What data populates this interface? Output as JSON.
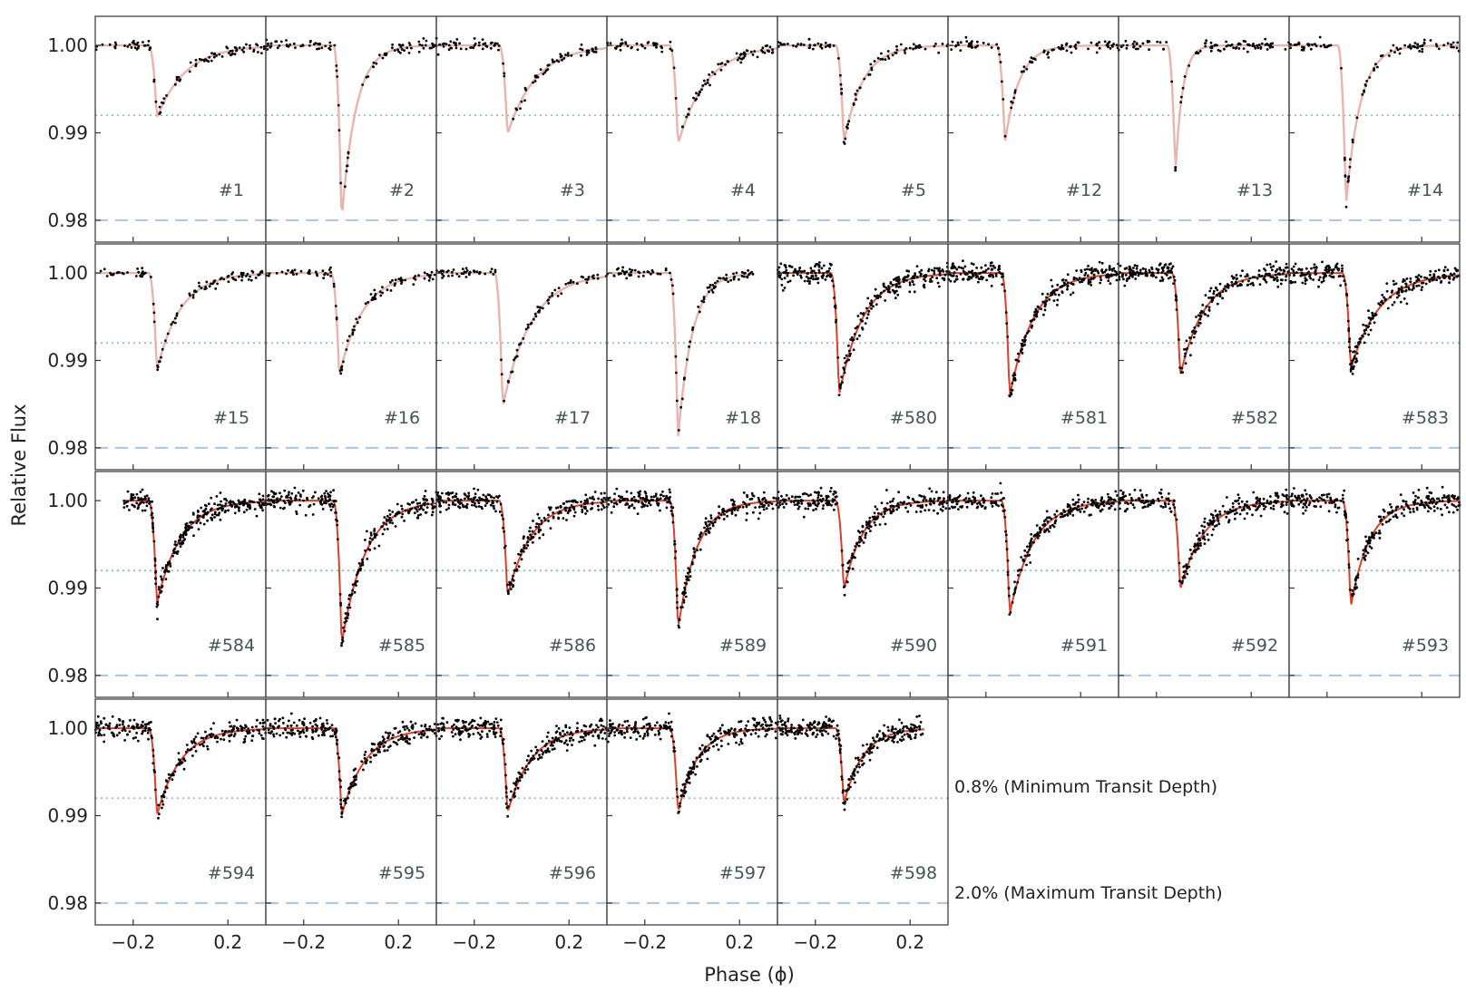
{
  "chart_data": {
    "type": "scatter",
    "title": "",
    "xlabel": "Phase (ϕ)",
    "ylabel": "Relative Flux",
    "xlim": [
      -0.36,
      0.36
    ],
    "ylim": [
      0.9775,
      1.0025
    ],
    "xticks": [
      -0.2,
      0.2
    ],
    "xtick_labels": [
      "−0.2",
      "0.2"
    ],
    "yticks": [
      1.0,
      0.99,
      0.98
    ],
    "ytick_labels": [
      "1.00",
      "0.99",
      "0.98"
    ],
    "reference_lines": [
      {
        "value": 0.992,
        "style": "dotted",
        "color": "#8fbcbf",
        "label": "0.8% (Minimum Transit Depth)"
      },
      {
        "value": 0.98,
        "style": "dashed",
        "color": "#a9c3e6",
        "label": "2.0% (Maximum Transit Depth)"
      }
    ],
    "model_color_faint": "#e8b4ae",
    "model_color_full": "#d9412b",
    "point_color": "#000000",
    "panels": [
      {
        "label": "#1",
        "depth": 0.0083,
        "center": -0.1,
        "egress_scale": 0.12,
        "model": "faint",
        "points": 100,
        "noise": 0.0003,
        "x_range": [
          -0.36,
          0.36
        ]
      },
      {
        "label": "#2",
        "depth": 0.02,
        "center": -0.04,
        "egress_scale": 0.06,
        "model": "faint",
        "points": 100,
        "noise": 0.0003,
        "x_range": [
          -0.36,
          0.36
        ]
      },
      {
        "label": "#3",
        "depth": 0.0102,
        "center": -0.06,
        "egress_scale": 0.12,
        "model": "faint",
        "points": 100,
        "noise": 0.0003,
        "x_range": [
          -0.36,
          0.36
        ]
      },
      {
        "label": "#4",
        "depth": 0.0113,
        "center": -0.06,
        "egress_scale": 0.12,
        "model": "faint",
        "points": 100,
        "noise": 0.0003,
        "x_range": [
          -0.36,
          0.36
        ]
      },
      {
        "label": "#5",
        "depth": 0.0112,
        "center": -0.08,
        "egress_scale": 0.08,
        "model": "faint",
        "points": 100,
        "noise": 0.0003,
        "x_range": [
          -0.36,
          0.36
        ]
      },
      {
        "label": "#12",
        "depth": 0.0112,
        "center": -0.12,
        "egress_scale": 0.06,
        "model": "faint",
        "points": 100,
        "noise": 0.0003,
        "x_range": [
          -0.36,
          0.36
        ]
      },
      {
        "label": "#13",
        "depth": 0.0145,
        "center": -0.12,
        "egress_scale": 0.03,
        "model": "faint",
        "points": 100,
        "noise": 0.0003,
        "x_range": [
          -0.36,
          0.36
        ]
      },
      {
        "label": "#14",
        "depth": 0.0183,
        "center": -0.12,
        "egress_scale": 0.06,
        "model": "faint",
        "points": 100,
        "noise": 0.0003,
        "x_range": [
          -0.36,
          0.36
        ]
      },
      {
        "label": "#15",
        "depth": 0.0112,
        "center": -0.1,
        "egress_scale": 0.1,
        "model": "faint",
        "points": 100,
        "noise": 0.0003,
        "x_range": [
          -0.36,
          0.36
        ]
      },
      {
        "label": "#16",
        "depth": 0.0118,
        "center": -0.05,
        "egress_scale": 0.1,
        "model": "faint",
        "points": 100,
        "noise": 0.0003,
        "x_range": [
          -0.36,
          0.36
        ]
      },
      {
        "label": "#17",
        "depth": 0.0153,
        "center": -0.08,
        "egress_scale": 0.12,
        "model": "faint",
        "points": 100,
        "noise": 0.0003,
        "x_range": [
          -0.36,
          0.36
        ]
      },
      {
        "label": "#18",
        "depth": 0.019,
        "center": -0.06,
        "egress_scale": 0.06,
        "model": "faint",
        "points": 100,
        "noise": 0.0003,
        "x_range": [
          -0.36,
          0.26
        ]
      },
      {
        "label": "#580",
        "depth": 0.014,
        "center": -0.1,
        "egress_scale": 0.1,
        "model": "full",
        "points": 280,
        "noise": 0.0006,
        "x_range": [
          -0.36,
          0.36
        ]
      },
      {
        "label": "#581",
        "depth": 0.0142,
        "center": -0.1,
        "egress_scale": 0.1,
        "model": "full",
        "points": 280,
        "noise": 0.0006,
        "x_range": [
          -0.36,
          0.36
        ]
      },
      {
        "label": "#582",
        "depth": 0.0118,
        "center": -0.1,
        "egress_scale": 0.1,
        "model": "full",
        "points": 280,
        "noise": 0.0006,
        "x_range": [
          -0.36,
          0.36
        ]
      },
      {
        "label": "#583",
        "depth": 0.011,
        "center": -0.1,
        "egress_scale": 0.12,
        "model": "full",
        "points": 280,
        "noise": 0.0006,
        "x_range": [
          -0.36,
          0.36
        ]
      },
      {
        "label": "#584",
        "depth": 0.0118,
        "center": -0.1,
        "egress_scale": 0.1,
        "model": "full",
        "points": 280,
        "noise": 0.0006,
        "x_range": [
          -0.24,
          0.36
        ]
      },
      {
        "label": "#585",
        "depth": 0.0164,
        "center": -0.04,
        "egress_scale": 0.1,
        "model": "full",
        "points": 280,
        "noise": 0.0006,
        "x_range": [
          -0.36,
          0.36
        ]
      },
      {
        "label": "#586",
        "depth": 0.011,
        "center": -0.06,
        "egress_scale": 0.1,
        "model": "full",
        "points": 280,
        "noise": 0.0006,
        "x_range": [
          -0.36,
          0.36
        ]
      },
      {
        "label": "#589",
        "depth": 0.0147,
        "center": -0.06,
        "egress_scale": 0.08,
        "model": "full",
        "points": 280,
        "noise": 0.0006,
        "x_range": [
          -0.36,
          0.36
        ]
      },
      {
        "label": "#590",
        "depth": 0.0103,
        "center": -0.08,
        "egress_scale": 0.08,
        "model": "full",
        "points": 280,
        "noise": 0.0006,
        "x_range": [
          -0.36,
          0.36
        ]
      },
      {
        "label": "#591",
        "depth": 0.013,
        "center": -0.1,
        "egress_scale": 0.1,
        "model": "full",
        "points": 280,
        "noise": 0.0006,
        "x_range": [
          -0.36,
          0.36
        ]
      },
      {
        "label": "#592",
        "depth": 0.0102,
        "center": -0.1,
        "egress_scale": 0.1,
        "model": "full",
        "points": 280,
        "noise": 0.0006,
        "x_range": [
          -0.36,
          0.36
        ]
      },
      {
        "label": "#593",
        "depth": 0.0122,
        "center": -0.1,
        "egress_scale": 0.08,
        "model": "full",
        "points": 280,
        "noise": 0.0006,
        "x_range": [
          -0.36,
          0.36
        ]
      },
      {
        "label": "#594",
        "depth": 0.01,
        "center": -0.1,
        "egress_scale": 0.1,
        "model": "full",
        "points": 250,
        "noise": 0.0006,
        "x_range": [
          -0.36,
          0.36
        ]
      },
      {
        "label": "#595",
        "depth": 0.01,
        "center": -0.04,
        "egress_scale": 0.1,
        "model": "full",
        "points": 280,
        "noise": 0.0006,
        "x_range": [
          -0.36,
          0.36
        ]
      },
      {
        "label": "#596",
        "depth": 0.0097,
        "center": -0.06,
        "egress_scale": 0.1,
        "model": "full",
        "points": 280,
        "noise": 0.0006,
        "x_range": [
          -0.36,
          0.36
        ]
      },
      {
        "label": "#597",
        "depth": 0.0097,
        "center": -0.06,
        "egress_scale": 0.08,
        "model": "full",
        "points": 280,
        "noise": 0.0006,
        "x_range": [
          -0.36,
          0.36
        ]
      },
      {
        "label": "#598",
        "depth": 0.0087,
        "center": -0.08,
        "egress_scale": 0.08,
        "model": "full",
        "points": 280,
        "noise": 0.0006,
        "x_range": [
          -0.36,
          0.26
        ]
      }
    ]
  }
}
